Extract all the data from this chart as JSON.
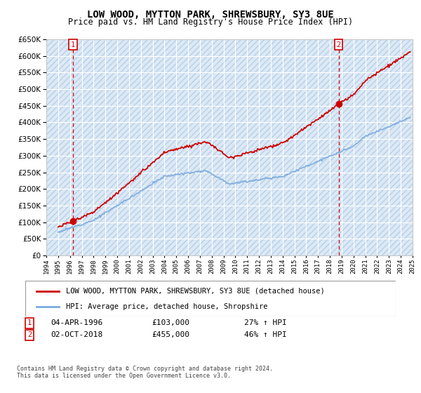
{
  "title": "LOW WOOD, MYTTON PARK, SHREWSBURY, SY3 8UE",
  "subtitle": "Price paid vs. HM Land Registry's House Price Index (HPI)",
  "legend_line1": "LOW WOOD, MYTTON PARK, SHREWSBURY, SY3 8UE (detached house)",
  "legend_line2": "HPI: Average price, detached house, Shropshire",
  "annotation1_label": "1",
  "annotation1_date": "04-APR-1996",
  "annotation1_price": "£103,000",
  "annotation1_hpi": "27% ↑ HPI",
  "annotation2_label": "2",
  "annotation2_date": "02-OCT-2018",
  "annotation2_price": "£455,000",
  "annotation2_hpi": "46% ↑ HPI",
  "footnote": "Contains HM Land Registry data © Crown copyright and database right 2024.\nThis data is licensed under the Open Government Licence v3.0.",
  "sale1_x": 1996.25,
  "sale1_y": 103000,
  "sale2_x": 2018.75,
  "sale2_y": 455000,
  "xmin": 1994,
  "xmax": 2025,
  "ymin": 0,
  "ymax": 650000,
  "yticks": [
    0,
    50000,
    100000,
    150000,
    200000,
    250000,
    300000,
    350000,
    400000,
    450000,
    500000,
    550000,
    600000,
    650000
  ],
  "background_color": "#dce9f5",
  "hatch_color": "#b8cfe8",
  "grid_color": "#ffffff",
  "red_line_color": "#cc0000",
  "blue_line_color": "#7aaadd",
  "annotation_box_color": "#cc0000",
  "dashed_vline_color": "#cc0000"
}
